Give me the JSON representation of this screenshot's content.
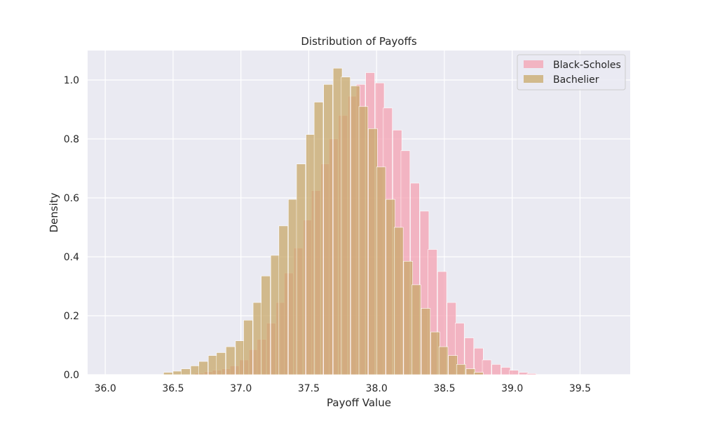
{
  "chart_data": {
    "type": "histogram",
    "title": "Distribution of Payoffs",
    "xlabel": "Payoff Value",
    "ylabel": "Density",
    "xlim": [
      35.87,
      39.87
    ],
    "ylim": [
      0,
      1.1
    ],
    "xticks": [
      36.0,
      36.5,
      37.0,
      37.5,
      38.0,
      38.5,
      39.0,
      39.5
    ],
    "xtick_labels": [
      "36.0",
      "36.5",
      "37.0",
      "37.5",
      "38.0",
      "38.5",
      "39.0",
      "39.5"
    ],
    "yticks": [
      0.0,
      0.2,
      0.4,
      0.6,
      0.8,
      1.0
    ],
    "ytick_labels": [
      "0.0",
      "0.2",
      "0.4",
      "0.6",
      "0.8",
      "1.0"
    ],
    "grid": true,
    "legend_position": "top-right",
    "bin_width": 0.0663,
    "series": [
      {
        "name": "Black-Scholes",
        "color": "#f4a1b2",
        "opacity": 0.75,
        "bins": [
          [
            36.46,
            0.0
          ],
          [
            36.53,
            0.0
          ],
          [
            36.59,
            0.0
          ],
          [
            36.66,
            0.005
          ],
          [
            36.73,
            0.01
          ],
          [
            36.79,
            0.015
          ],
          [
            36.86,
            0.02
          ],
          [
            36.92,
            0.03
          ],
          [
            36.99,
            0.05
          ],
          [
            37.06,
            0.085
          ],
          [
            37.12,
            0.12
          ],
          [
            37.19,
            0.175
          ],
          [
            37.26,
            0.245
          ],
          [
            37.32,
            0.345
          ],
          [
            37.39,
            0.43
          ],
          [
            37.46,
            0.525
          ],
          [
            37.52,
            0.625
          ],
          [
            37.59,
            0.715
          ],
          [
            37.65,
            0.8
          ],
          [
            37.72,
            0.88
          ],
          [
            37.79,
            0.945
          ],
          [
            37.85,
            0.985
          ],
          [
            37.92,
            1.025
          ],
          [
            37.99,
            0.99
          ],
          [
            38.05,
            0.905
          ],
          [
            38.12,
            0.83
          ],
          [
            38.18,
            0.76
          ],
          [
            38.25,
            0.65
          ],
          [
            38.32,
            0.555
          ],
          [
            38.38,
            0.425
          ],
          [
            38.45,
            0.35
          ],
          [
            38.52,
            0.245
          ],
          [
            38.58,
            0.175
          ],
          [
            38.65,
            0.125
          ],
          [
            38.72,
            0.09
          ],
          [
            38.78,
            0.05
          ],
          [
            38.85,
            0.035
          ],
          [
            38.92,
            0.025
          ],
          [
            38.98,
            0.015
          ],
          [
            39.05,
            0.008
          ],
          [
            39.11,
            0.004
          ]
        ]
      },
      {
        "name": "Bachelier",
        "color": "#c8a869",
        "opacity": 0.75,
        "bins": [
          [
            36.43,
            0.008
          ],
          [
            36.5,
            0.012
          ],
          [
            36.56,
            0.02
          ],
          [
            36.63,
            0.03
          ],
          [
            36.69,
            0.045
          ],
          [
            36.76,
            0.065
          ],
          [
            36.82,
            0.075
          ],
          [
            36.89,
            0.095
          ],
          [
            36.96,
            0.115
          ],
          [
            37.02,
            0.185
          ],
          [
            37.09,
            0.245
          ],
          [
            37.15,
            0.335
          ],
          [
            37.22,
            0.405
          ],
          [
            37.28,
            0.505
          ],
          [
            37.35,
            0.595
          ],
          [
            37.41,
            0.715
          ],
          [
            37.48,
            0.815
          ],
          [
            37.54,
            0.925
          ],
          [
            37.61,
            0.985
          ],
          [
            37.68,
            1.04
          ],
          [
            37.74,
            1.01
          ],
          [
            37.81,
            0.98
          ],
          [
            37.87,
            0.91
          ],
          [
            37.94,
            0.835
          ],
          [
            38.0,
            0.705
          ],
          [
            38.07,
            0.595
          ],
          [
            38.13,
            0.5
          ],
          [
            38.2,
            0.385
          ],
          [
            38.26,
            0.305
          ],
          [
            38.33,
            0.225
          ],
          [
            38.4,
            0.145
          ],
          [
            38.46,
            0.095
          ],
          [
            38.53,
            0.065
          ],
          [
            38.59,
            0.035
          ],
          [
            38.66,
            0.02
          ],
          [
            38.72,
            0.008
          ]
        ]
      }
    ]
  }
}
